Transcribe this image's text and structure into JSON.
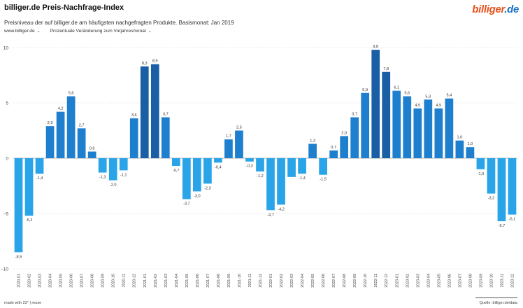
{
  "header": {
    "title": "billiger.de Preis-Nachfrage-Index",
    "logo_part1": "billiger",
    "logo_part2": ".de",
    "subtitle": "Preisniveau der auf billiger.de am häufigsten nachgefragten Produkte. Basismonat: Jan 2019"
  },
  "controls": {
    "site_selector": "www.billiger.de",
    "metric_selector": "Prozentuale Veränderung zum Vorjahresmonat"
  },
  "footer": {
    "credit": "made with 23° | reuse",
    "source": "Quelle: billiger.de/data"
  },
  "colors": {
    "light": "#2aa4e8",
    "medium": "#1f7fcf",
    "dark": "#1a5ea6",
    "grid": "#d7d7d7",
    "zero": "#9a9a9a"
  },
  "chart_data": {
    "type": "bar",
    "title": "billiger.de Preis-Nachfrage-Index",
    "xlabel": "",
    "ylabel": "",
    "ylim": [
      -10,
      10
    ],
    "yticks": [
      10,
      5,
      0,
      -5,
      -10
    ],
    "grid": true,
    "categories": [
      "2020-01",
      "2020-02",
      "2020-03",
      "2020-04",
      "2020-05",
      "2020-06",
      "2020-07",
      "2020-08",
      "2020-09",
      "2020-10",
      "2020-11",
      "2020-12",
      "2021-01",
      "2021-02",
      "2021-03",
      "2021-04",
      "2021-05",
      "2021-06",
      "2021-07",
      "2021-08",
      "2021-09",
      "2021-10",
      "2021-11",
      "2021-12",
      "2022-01",
      "2022-02",
      "2022-03",
      "2022-04",
      "2022-05",
      "2022-06",
      "2022-07",
      "2022-08",
      "2022-09",
      "2022-10",
      "2022-11",
      "2022-12",
      "2023-01",
      "2023-02",
      "2023-03",
      "2023-04",
      "2023-05",
      "2023-06",
      "2023-07",
      "2023-08",
      "2023-09",
      "2023-10",
      "2023-11",
      "2023-12"
    ],
    "values": [
      -8.5,
      -5.2,
      -1.4,
      2.9,
      4.2,
      5.6,
      2.7,
      0.6,
      -1.3,
      -2.0,
      -1.1,
      3.6,
      8.3,
      8.5,
      3.7,
      -0.7,
      -3.7,
      -3.0,
      -2.3,
      -0.4,
      1.7,
      2.5,
      -0.3,
      -1.2,
      -4.7,
      -4.2,
      -1.7,
      -1.4,
      1.3,
      -1.5,
      0.7,
      2.0,
      3.7,
      5.9,
      9.8,
      7.8,
      6.1,
      5.6,
      4.5,
      5.3,
      4.5,
      5.4,
      1.6,
      1.0,
      -1.0,
      -3.2,
      -5.7,
      -5.1
    ],
    "labels": [
      "-8,5",
      "-5,2",
      "-1,4",
      "2,9",
      "4,2",
      "5,6",
      "2,7",
      "0,6",
      "-1,3",
      "-2,0",
      "-1,1",
      "3,6",
      "8,3",
      "8,5",
      "3,7",
      "-0,7",
      "-3,7",
      "-3,0",
      "-2,3",
      "-0,4",
      "1,7",
      "2,5",
      "-0,3",
      "-1,2",
      "-4,7",
      "-4,2",
      "",
      "-1,4",
      "1,3",
      "-1,5",
      "0,7",
      "2,0",
      "3,7",
      "5,9",
      "9,8",
      "7,8",
      "6,1",
      "5,6",
      "4,5",
      "5,3",
      "4,5",
      "5,4",
      "1,6",
      "1,0",
      "-1,0",
      "-3,2",
      "-5,7",
      "-5,1"
    ]
  }
}
